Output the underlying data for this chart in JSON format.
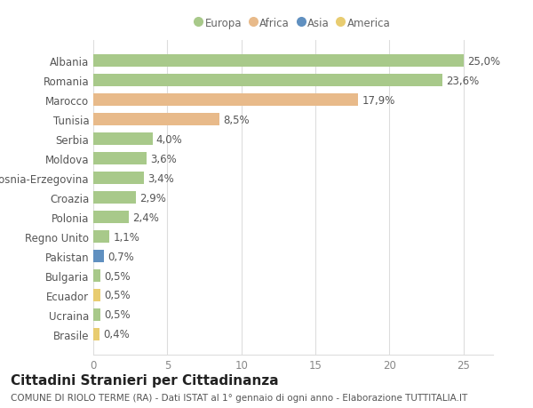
{
  "countries": [
    "Albania",
    "Romania",
    "Marocco",
    "Tunisia",
    "Serbia",
    "Moldova",
    "Bosnia-Erzegovina",
    "Croazia",
    "Polonia",
    "Regno Unito",
    "Pakistan",
    "Bulgaria",
    "Ecuador",
    "Ucraina",
    "Brasile"
  ],
  "values": [
    25.0,
    23.6,
    17.9,
    8.5,
    4.0,
    3.6,
    3.4,
    2.9,
    2.4,
    1.1,
    0.7,
    0.5,
    0.5,
    0.5,
    0.4
  ],
  "labels": [
    "25,0%",
    "23,6%",
    "17,9%",
    "8,5%",
    "4,0%",
    "3,6%",
    "3,4%",
    "2,9%",
    "2,4%",
    "1,1%",
    "0,7%",
    "0,5%",
    "0,5%",
    "0,5%",
    "0,4%"
  ],
  "continents": [
    "Europa",
    "Europa",
    "Africa",
    "Africa",
    "Europa",
    "Europa",
    "Europa",
    "Europa",
    "Europa",
    "Europa",
    "Asia",
    "Europa",
    "America",
    "Europa",
    "America"
  ],
  "continent_colors": {
    "Europa": "#a8c98a",
    "Africa": "#e8ba8a",
    "Asia": "#6090c0",
    "America": "#e8cc70"
  },
  "legend_order": [
    "Europa",
    "Africa",
    "Asia",
    "America"
  ],
  "legend_colors": [
    "#a8c98a",
    "#e8ba8a",
    "#6090c0",
    "#e8cc70"
  ],
  "title": "Cittadini Stranieri per Cittadinanza",
  "subtitle": "COMUNE DI RIOLO TERME (RA) - Dati ISTAT al 1° gennaio di ogni anno - Elaborazione TUTTITALIA.IT",
  "xlim": [
    0,
    27
  ],
  "xticks": [
    0,
    5,
    10,
    15,
    20,
    25
  ],
  "background_color": "#ffffff",
  "grid_color": "#dddddd",
  "bar_height": 0.65,
  "label_fontsize": 8.5,
  "tick_fontsize": 8.5,
  "title_fontsize": 11,
  "subtitle_fontsize": 7.5,
  "ylabel_color": "#555555",
  "xlabel_color": "#888888"
}
